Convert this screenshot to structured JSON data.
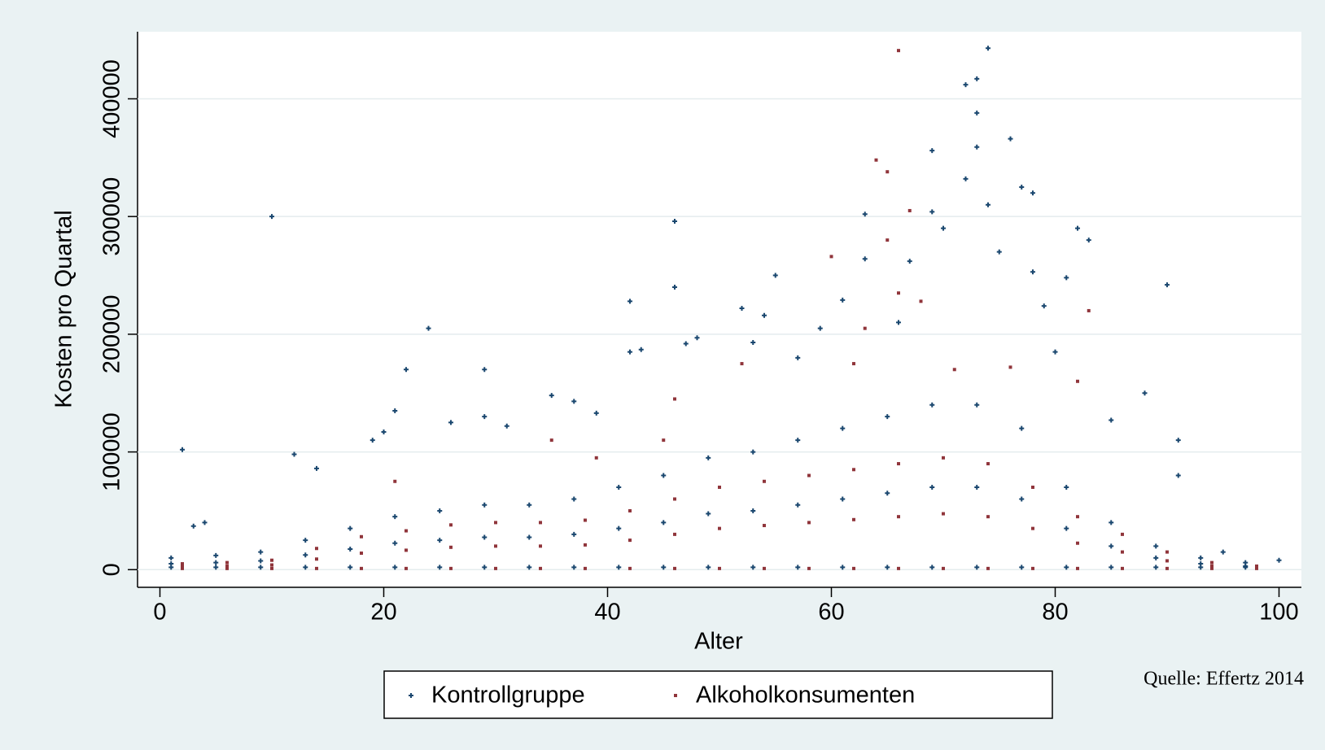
{
  "chart_data": {
    "type": "scatter",
    "x_label": "Alter",
    "y_label": "Kosten pro Quartal",
    "source": "Quelle: Effertz 2014",
    "xlim": [
      -2,
      102
    ],
    "ylim": [
      -15000,
      457000
    ],
    "xticks": [
      0,
      20,
      40,
      60,
      80,
      100
    ],
    "yticks": [
      0,
      100000,
      200000,
      300000,
      400000
    ],
    "grid": true,
    "series": [
      {
        "name": "Kontrollgruppe",
        "color": "#1a476f",
        "marker": "plus",
        "x": [
          1,
          1,
          1,
          5,
          5,
          5,
          9,
          9,
          9,
          13,
          13,
          13,
          17,
          17,
          17,
          21,
          21,
          21,
          25,
          25,
          25,
          29,
          29,
          29,
          33,
          33,
          33,
          37,
          37,
          37,
          41,
          41,
          41,
          45,
          45,
          45,
          49,
          49,
          49,
          53,
          53,
          53,
          57,
          57,
          57,
          61,
          61,
          61,
          65,
          65,
          65,
          69,
          69,
          69,
          73,
          73,
          73,
          77,
          77,
          77,
          81,
          81,
          81,
          85,
          85,
          85,
          89,
          89,
          89,
          93,
          93,
          93,
          97,
          97,
          97,
          2,
          3,
          4,
          10,
          12,
          14,
          19,
          20,
          21,
          22,
          24,
          26,
          29,
          29,
          31,
          35,
          37,
          39,
          42,
          42,
          43,
          46,
          46,
          47,
          48,
          52,
          53,
          54,
          55,
          57,
          59,
          61,
          63,
          63,
          66,
          67,
          69,
          69,
          70,
          72,
          72,
          73,
          73,
          73,
          74,
          74,
          75,
          76,
          77,
          78,
          78,
          79,
          80,
          81,
          82,
          83,
          85,
          88,
          90,
          91,
          91,
          95,
          100
        ],
        "y": [
          2000,
          5000,
          10000,
          2000,
          6000,
          12000,
          2000,
          7500,
          15000,
          2000,
          12500,
          25000,
          2000,
          17500,
          35000,
          2000,
          22500,
          45000,
          2000,
          25000,
          50000,
          2000,
          27500,
          55000,
          2000,
          27500,
          55000,
          2000,
          30000,
          60000,
          2000,
          35000,
          70000,
          2000,
          40000,
          80000,
          2000,
          47500,
          95000,
          2000,
          50000,
          100000,
          2000,
          55000,
          110000,
          2000,
          60000,
          120000,
          2000,
          65000,
          130000,
          2000,
          70000,
          140000,
          2000,
          70000,
          140000,
          2000,
          60000,
          120000,
          2000,
          35000,
          70000,
          2000,
          20000,
          40000,
          2000,
          10000,
          20000,
          2000,
          5000,
          10000,
          2000,
          3000,
          6000,
          102000,
          37000,
          40000,
          300000,
          98000,
          86000,
          110000,
          117000,
          135000,
          170000,
          205000,
          125000,
          170000,
          130000,
          122000,
          148000,
          143000,
          133000,
          228000,
          185000,
          187000,
          296000,
          240000,
          192000,
          197000,
          222000,
          193000,
          216000,
          250000,
          180000,
          205000,
          229000,
          302000,
          264000,
          210000,
          262000,
          356000,
          304000,
          290000,
          412000,
          332000,
          417000,
          388000,
          359000,
          443000,
          310000,
          270000,
          366000,
          325000,
          320000,
          253000,
          224000,
          185000,
          248000,
          290000,
          280000,
          127000,
          150000,
          242000,
          110000,
          80000,
          15000,
          8000
        ]
      },
      {
        "name": "Alkoholkonsumenten",
        "color": "#90353b",
        "marker": "square",
        "x": [
          2,
          2,
          2,
          6,
          6,
          6,
          10,
          10,
          10,
          14,
          14,
          14,
          18,
          18,
          18,
          22,
          22,
          22,
          26,
          26,
          26,
          30,
          30,
          30,
          34,
          34,
          34,
          38,
          38,
          38,
          42,
          42,
          42,
          46,
          46,
          46,
          50,
          50,
          50,
          54,
          54,
          54,
          58,
          58,
          58,
          62,
          62,
          62,
          66,
          66,
          66,
          70,
          70,
          70,
          74,
          74,
          74,
          78,
          78,
          78,
          82,
          82,
          82,
          86,
          86,
          86,
          90,
          90,
          90,
          94,
          94,
          94,
          98,
          98,
          98,
          64,
          65,
          66,
          65,
          66,
          67,
          60,
          63,
          52,
          68,
          62,
          71,
          76,
          82,
          83,
          35,
          46,
          39,
          21,
          45
        ],
        "y": [
          1000,
          2500,
          5000,
          1000,
          3000,
          6000,
          1000,
          4000,
          8000,
          1000,
          9000,
          18000,
          1000,
          14000,
          28000,
          1000,
          16500,
          33000,
          1000,
          19000,
          38000,
          1000,
          20000,
          40000,
          1000,
          20000,
          40000,
          1000,
          21000,
          42000,
          1000,
          25000,
          50000,
          1000,
          30000,
          60000,
          1000,
          35000,
          70000,
          1000,
          37500,
          75000,
          1000,
          40000,
          80000,
          1000,
          42500,
          85000,
          1000,
          45000,
          90000,
          1000,
          47500,
          95000,
          1000,
          45000,
          90000,
          1000,
          35000,
          70000,
          1000,
          22500,
          45000,
          1000,
          15000,
          30000,
          1000,
          7500,
          15000,
          1000,
          3000,
          6000,
          1000,
          1500,
          3000,
          348000,
          338000,
          441000,
          280000,
          235000,
          305000,
          266000,
          205000,
          175000,
          228000,
          175000,
          170000,
          172000,
          160000,
          220000,
          110000,
          145000,
          95000,
          75000,
          110000
        ]
      }
    ]
  }
}
